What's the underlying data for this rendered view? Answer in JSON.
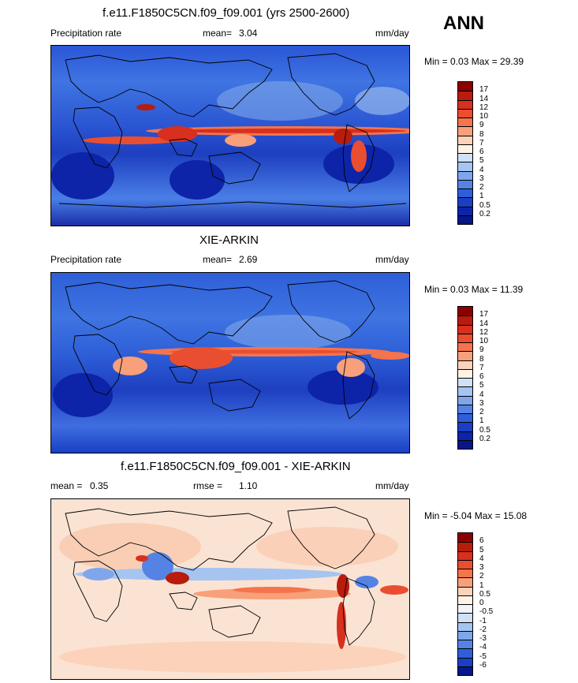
{
  "season": "ANN",
  "panels": [
    {
      "title": "f.e11.F1850C5CN.f09_f09.001 (yrs 2500-2600)",
      "left_label": "Precipitation rate",
      "mean_label": "mean=",
      "mean_value": "3.04",
      "units": "mm/day",
      "minmax": "Min =  0.03 Max =  29.39",
      "levels": [
        "17",
        "14",
        "12",
        "10",
        "9",
        "8",
        "7",
        "6",
        "5",
        "4",
        "3",
        "2",
        "1",
        "0.5",
        "0.2"
      ],
      "colors": [
        "#8b0000",
        "#b81c0c",
        "#d7301f",
        "#ea4e30",
        "#f4744c",
        "#f7a07a",
        "#fcd3ba",
        "#fff3e6",
        "#cfe0f7",
        "#a6c4f0",
        "#7fa6ea",
        "#5583e4",
        "#2e5fd8",
        "#1a3fc4",
        "#0d24a8",
        "#071688"
      ]
    },
    {
      "title": "XIE-ARKIN",
      "left_label": "Precipitation rate",
      "mean_label": "mean=",
      "mean_value": "2.69",
      "units": "mm/day",
      "minmax": "Min =  0.03 Max =  11.39",
      "levels": [
        "17",
        "14",
        "12",
        "10",
        "9",
        "8",
        "7",
        "6",
        "5",
        "4",
        "3",
        "2",
        "1",
        "0.5",
        "0.2"
      ],
      "colors": [
        "#8b0000",
        "#b81c0c",
        "#d7301f",
        "#ea4e30",
        "#f4744c",
        "#f7a07a",
        "#fcd3ba",
        "#fff3e6",
        "#cfe0f7",
        "#a6c4f0",
        "#7fa6ea",
        "#5583e4",
        "#2e5fd8",
        "#1a3fc4",
        "#0d24a8",
        "#071688"
      ]
    },
    {
      "title": "f.e11.F1850C5CN.f09_f09.001 - XIE-ARKIN",
      "left_label": "mean =",
      "left_value": "0.35",
      "rmse_label": "rmse =",
      "rmse_value": "1.10",
      "units": "mm/day",
      "minmax": "Min = -5.04 Max =  15.08",
      "levels": [
        "6",
        "5",
        "4",
        "3",
        "2",
        "1",
        "0.5",
        "0",
        "-0.5",
        "-1",
        "-2",
        "-3",
        "-4",
        "-5",
        "-6"
      ],
      "colors": [
        "#8b0000",
        "#b81c0c",
        "#d7301f",
        "#ea4e30",
        "#f4744c",
        "#f7a07a",
        "#fcd3ba",
        "#fff3e6",
        "#f0f4fb",
        "#cfe0f7",
        "#a6c4f0",
        "#7fa6ea",
        "#5583e4",
        "#2e5fd8",
        "#1a3fc4",
        "#071688"
      ]
    }
  ]
}
